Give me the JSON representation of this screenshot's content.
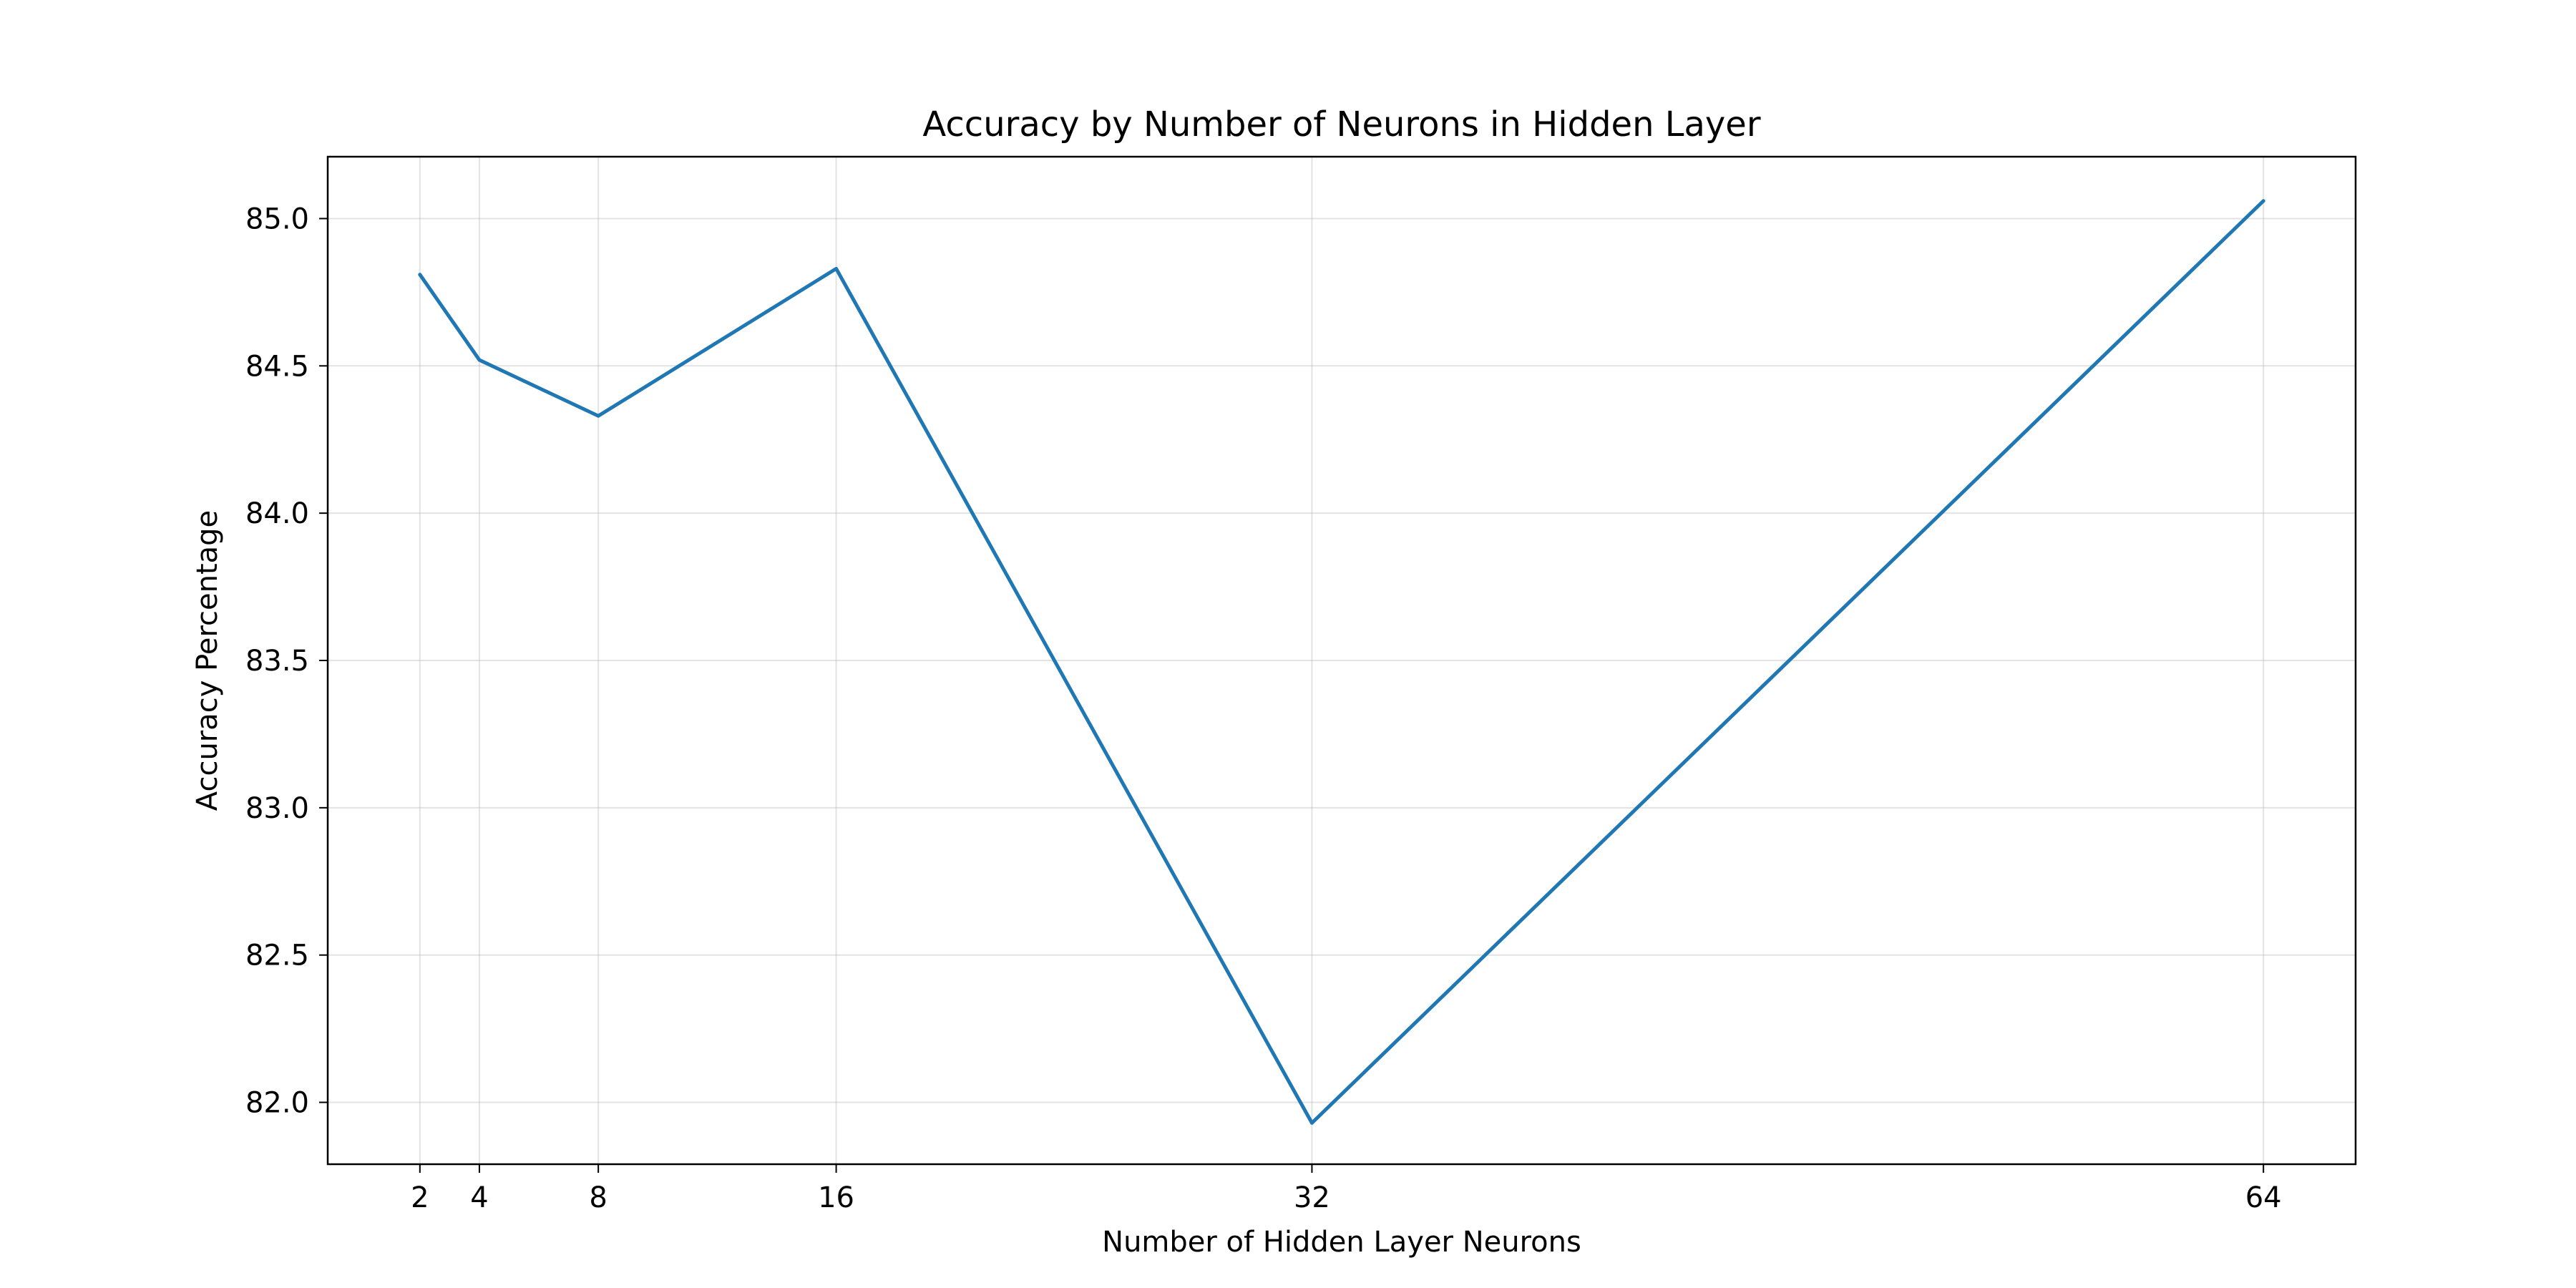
{
  "chart_data": {
    "type": "line",
    "title": "Accuracy by Number of Neurons in Hidden Layer",
    "xlabel": "Number of Hidden Layer Neurons",
    "ylabel": "Accuracy Percentage",
    "x": [
      2,
      4,
      8,
      16,
      32,
      64
    ],
    "series": [
      {
        "values": [
          84.81,
          84.52,
          84.33,
          84.83,
          81.93,
          85.06
        ],
        "color": "#1f77b4"
      }
    ],
    "xticks": [
      2,
      4,
      8,
      16,
      32,
      64
    ],
    "xtick_labels": [
      "2",
      "4",
      "8",
      "16",
      "32",
      "64"
    ],
    "yticks": [
      82.0,
      82.5,
      83.0,
      83.5,
      84.0,
      84.5,
      85.0
    ],
    "ytick_labels": [
      "82.0",
      "82.5",
      "83.0",
      "83.5",
      "84.0",
      "84.5",
      "85.0"
    ],
    "xlim": [
      -1.1,
      67.1
    ],
    "ylim": [
      81.79,
      85.21
    ],
    "grid": true,
    "legend": "none"
  }
}
